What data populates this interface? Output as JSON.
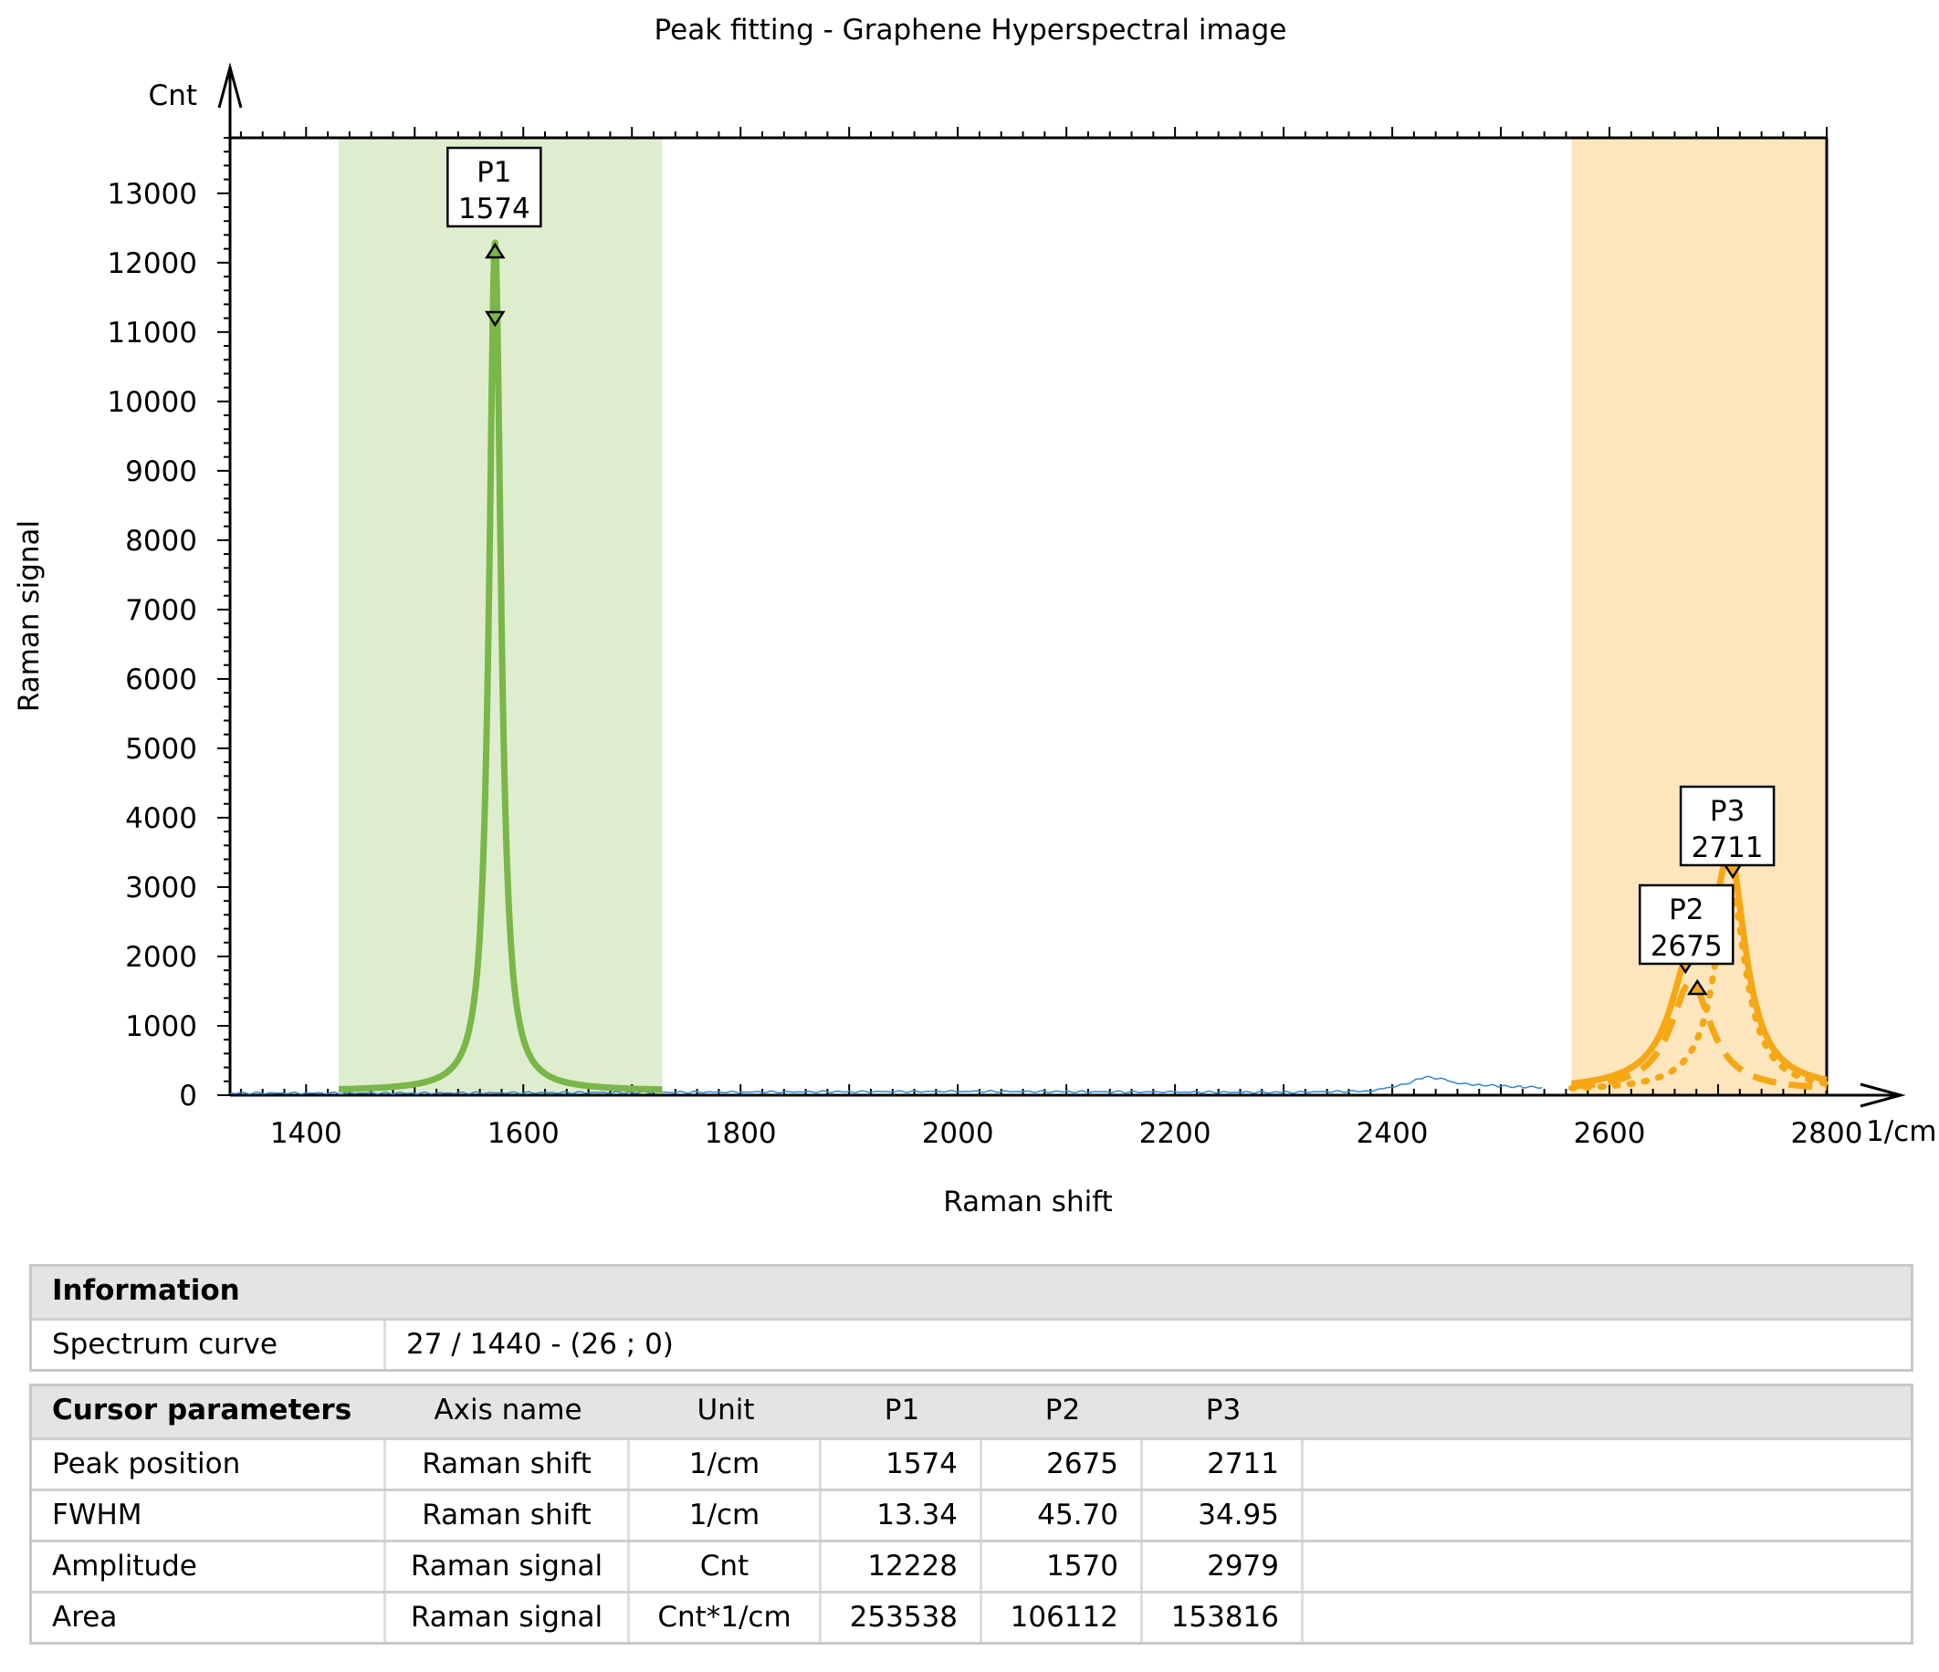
{
  "chart_data": {
    "type": "line",
    "title": "Peak fitting - Graphene Hyperspectral image",
    "xlabel": "Raman shift",
    "ylabel": "Raman signal",
    "x_unit": "1/cm",
    "y_unit": "Cnt",
    "xlim": [
      1330,
      2800
    ],
    "ylim": [
      0,
      13800
    ],
    "x_ticks": [
      1400,
      1600,
      1800,
      2000,
      2200,
      2400,
      2600,
      2800
    ],
    "y_ticks": [
      0,
      1000,
      2000,
      3000,
      4000,
      5000,
      6000,
      7000,
      8000,
      9000,
      10000,
      11000,
      12000,
      13000
    ],
    "grid": false,
    "regions": [
      {
        "x_start": 1430,
        "x_end": 1728,
        "color": "#dfedcf"
      },
      {
        "x_start": 2565,
        "x_end": 2810,
        "color": "#fde6bd"
      }
    ],
    "peaks": [
      {
        "label": "P1",
        "position": 1574,
        "fwhm": 13.34,
        "amplitude": 12228,
        "color": "#7ab648"
      },
      {
        "label": "P2",
        "position": 2675,
        "fwhm": 45.7,
        "amplitude": 1570,
        "color": "#f5a814"
      },
      {
        "label": "P3",
        "position": 2711,
        "fwhm": 34.95,
        "amplitude": 2979,
        "color": "#f5a814"
      }
    ],
    "series": [
      {
        "name": "",
        "color": "#2f86d6",
        "x": [
          1330,
          1400,
          1500,
          1700,
          1800,
          1900,
          2000,
          2100,
          2200,
          2300,
          2380,
          2410,
          2430,
          2445,
          2460,
          2480,
          2500,
          2520,
          2540
        ],
        "y": [
          30,
          30,
          30,
          40,
          45,
          50,
          55,
          50,
          45,
          40,
          60,
          150,
          260,
          240,
          170,
          150,
          130,
          120,
          110
        ]
      }
    ]
  },
  "info": {
    "header": "Information",
    "label": "Spectrum curve",
    "value": "27 / 1440 - (26 ; 0)"
  },
  "cursor": {
    "headers": [
      "Cursor parameters",
      "Axis name",
      "Unit",
      "P1",
      "P2",
      "P3"
    ],
    "rows": [
      [
        "Peak position",
        "Raman shift",
        "1/cm",
        "1574",
        "2675",
        "2711"
      ],
      [
        "FWHM",
        "Raman shift",
        "1/cm",
        "13.34",
        "45.70",
        "34.95"
      ],
      [
        "Amplitude",
        "Raman signal",
        "Cnt",
        "12228",
        "1570",
        "2979"
      ],
      [
        "Area",
        "Raman signal",
        "Cnt*1/cm",
        "253538",
        "106112",
        "153816"
      ]
    ]
  }
}
